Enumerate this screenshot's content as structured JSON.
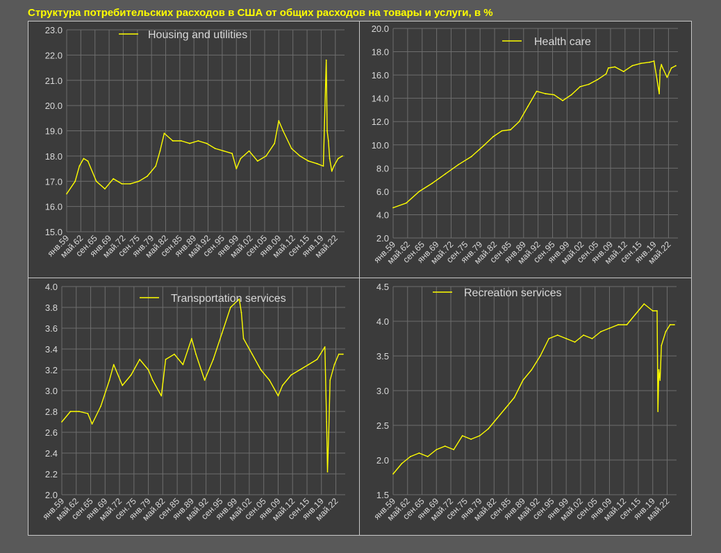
{
  "page": {
    "title": "Структура потребительских расходов в США от общих расходов на товары и услуги, в %"
  },
  "style": {
    "background": "#595959",
    "panel_background": "#3b3b3b",
    "series_color": "#ffff00",
    "grid_color": "#6e6e6e",
    "tick_label_color": "#d9d9d9"
  },
  "chart_data": [
    {
      "type": "line",
      "legend": "Housing and utilities",
      "legend_position": "top-center",
      "grid": true,
      "ylim": [
        15.0,
        23.0
      ],
      "yticks": [
        "15.0",
        "16.0",
        "17.0",
        "18.0",
        "19.0",
        "20.0",
        "21.0",
        "22.0",
        "23.0"
      ],
      "xticks": [
        "янв.59",
        "май.62",
        "сен.65",
        "янв.69",
        "май.72",
        "сен.75",
        "янв.79",
        "май.82",
        "сен.85",
        "янв.89",
        "май.92",
        "сен.95",
        "янв.99",
        "май.02",
        "сен.05",
        "янв.09",
        "май.12",
        "сен.15",
        "янв.19",
        "май.22"
      ],
      "x": [
        1959,
        1961,
        1962,
        1963,
        1964,
        1966,
        1968,
        1970,
        1972,
        1974,
        1976,
        1978,
        1980,
        1981,
        1982,
        1984,
        1986,
        1988,
        1990,
        1992,
        1994,
        1996,
        1998,
        1999,
        2000,
        2002,
        2004,
        2006,
        2008,
        2009,
        2010,
        2012,
        2014,
        2016,
        2018,
        2019.5,
        2020.2,
        2020.4,
        2020.7,
        2021,
        2021.5,
        2022,
        2023,
        2024
      ],
      "values": [
        16.5,
        17.0,
        17.6,
        17.9,
        17.8,
        17.0,
        16.7,
        17.1,
        16.9,
        16.9,
        17.0,
        17.2,
        17.6,
        18.2,
        18.9,
        18.6,
        18.6,
        18.5,
        18.6,
        18.5,
        18.3,
        18.2,
        18.1,
        17.5,
        17.9,
        18.2,
        17.8,
        18.0,
        18.5,
        19.4,
        19.0,
        18.3,
        18.0,
        17.8,
        17.7,
        17.6,
        21.8,
        19.0,
        18.6,
        17.9,
        17.4,
        17.6,
        17.9,
        18.0
      ]
    },
    {
      "type": "line",
      "legend": "Health care",
      "legend_position": "top-right",
      "grid": true,
      "ylim": [
        2.0,
        20.0
      ],
      "yticks": [
        "2.0",
        "4.0",
        "6.0",
        "8.0",
        "10.0",
        "12.0",
        "14.0",
        "16.0",
        "18.0",
        "20.0"
      ],
      "xticks": [
        "янв.59",
        "май.62",
        "сен.65",
        "янв.69",
        "май.72",
        "сен.75",
        "янв.79",
        "май.82",
        "сен.85",
        "янв.89",
        "май.92",
        "сен.95",
        "янв.99",
        "май.02",
        "сен.05",
        "янв.09",
        "май.12",
        "сен.15",
        "янв.19",
        "май.22"
      ],
      "x": [
        1959,
        1962,
        1965,
        1968,
        1971,
        1974,
        1977,
        1980,
        1982,
        1984,
        1986,
        1988,
        1990,
        1992,
        1994,
        1996,
        1998,
        2000,
        2002,
        2004,
        2006,
        2008,
        2008.5,
        2010,
        2012,
        2014,
        2016,
        2018,
        2019,
        2020.2,
        2020.4,
        2020.7,
        2021,
        2022,
        2023,
        2024
      ],
      "values": [
        4.6,
        5.0,
        6.0,
        6.7,
        7.5,
        8.3,
        9.0,
        10.0,
        10.7,
        11.2,
        11.3,
        12.0,
        13.3,
        14.6,
        14.4,
        14.3,
        13.8,
        14.3,
        15.0,
        15.2,
        15.6,
        16.1,
        16.6,
        16.7,
        16.3,
        16.8,
        17.0,
        17.1,
        17.2,
        14.4,
        16.4,
        16.9,
        16.6,
        15.8,
        16.6,
        16.8
      ]
    },
    {
      "type": "line",
      "legend": "Transportation services",
      "legend_position": "top-center",
      "grid": true,
      "ylim": [
        2.0,
        4.0
      ],
      "yticks": [
        "2.0",
        "2.2",
        "2.4",
        "2.6",
        "2.8",
        "3.0",
        "3.2",
        "3.4",
        "3.6",
        "3.8",
        "4.0"
      ],
      "xticks": [
        "янв.59",
        "май.62",
        "сен.65",
        "янв.69",
        "май.72",
        "сен.75",
        "янв.79",
        "май.82",
        "сен.85",
        "янв.89",
        "май.92",
        "сен.95",
        "янв.99",
        "май.02",
        "сен.05",
        "янв.09",
        "май.12",
        "сен.15",
        "янв.19",
        "май.22"
      ],
      "x": [
        1959,
        1961,
        1963,
        1965,
        1966,
        1968,
        1970,
        1971,
        1973,
        1975,
        1977,
        1979,
        1980,
        1982,
        1983,
        1985,
        1987,
        1989,
        1990,
        1992,
        1994,
        1996,
        1998,
        2000,
        2000.5,
        2001,
        2003,
        2005,
        2007,
        2009,
        2010,
        2012,
        2014,
        2016,
        2018,
        2019.8,
        2020.2,
        2020.4,
        2020.7,
        2021,
        2022,
        2023,
        2024
      ],
      "values": [
        2.7,
        2.8,
        2.8,
        2.78,
        2.68,
        2.85,
        3.1,
        3.25,
        3.05,
        3.15,
        3.3,
        3.2,
        3.1,
        2.95,
        3.3,
        3.35,
        3.25,
        3.5,
        3.35,
        3.1,
        3.3,
        3.55,
        3.8,
        3.88,
        3.75,
        3.5,
        3.35,
        3.2,
        3.1,
        2.95,
        3.05,
        3.15,
        3.2,
        3.25,
        3.3,
        3.42,
        2.7,
        2.22,
        2.6,
        3.1,
        3.25,
        3.35,
        3.35
      ]
    },
    {
      "type": "line",
      "legend": "Recreation services",
      "legend_position": "top-center",
      "grid": true,
      "ylim": [
        1.5,
        4.5
      ],
      "yticks": [
        "1.5",
        "2.0",
        "2.5",
        "3.0",
        "3.5",
        "4.0",
        "4.5"
      ],
      "xticks": [
        "янв.59",
        "май.62",
        "сен.65",
        "янв.69",
        "май.72",
        "сен.75",
        "янв.79",
        "май.82",
        "сен.85",
        "янв.89",
        "май.92",
        "сен.95",
        "янв.99",
        "май.02",
        "сен.05",
        "янв.09",
        "май.12",
        "сен.15",
        "янв.19",
        "май.22"
      ],
      "x": [
        1959,
        1961,
        1963,
        1965,
        1967,
        1969,
        1971,
        1973,
        1975,
        1977,
        1979,
        1981,
        1983,
        1985,
        1987,
        1989,
        1991,
        1993,
        1995,
        1997,
        1999,
        2001,
        2003,
        2005,
        2007,
        2009,
        2011,
        2013,
        2015,
        2017,
        2019,
        2020,
        2020.2,
        2020.4,
        2020.7,
        2021,
        2022,
        2023,
        2024
      ],
      "values": [
        1.8,
        1.95,
        2.05,
        2.1,
        2.05,
        2.15,
        2.2,
        2.15,
        2.35,
        2.3,
        2.35,
        2.45,
        2.6,
        2.75,
        2.9,
        3.15,
        3.3,
        3.5,
        3.75,
        3.8,
        3.75,
        3.7,
        3.8,
        3.75,
        3.85,
        3.9,
        3.95,
        3.95,
        4.1,
        4.25,
        4.15,
        4.15,
        2.7,
        3.3,
        3.15,
        3.65,
        3.85,
        3.95,
        3.95
      ]
    }
  ]
}
